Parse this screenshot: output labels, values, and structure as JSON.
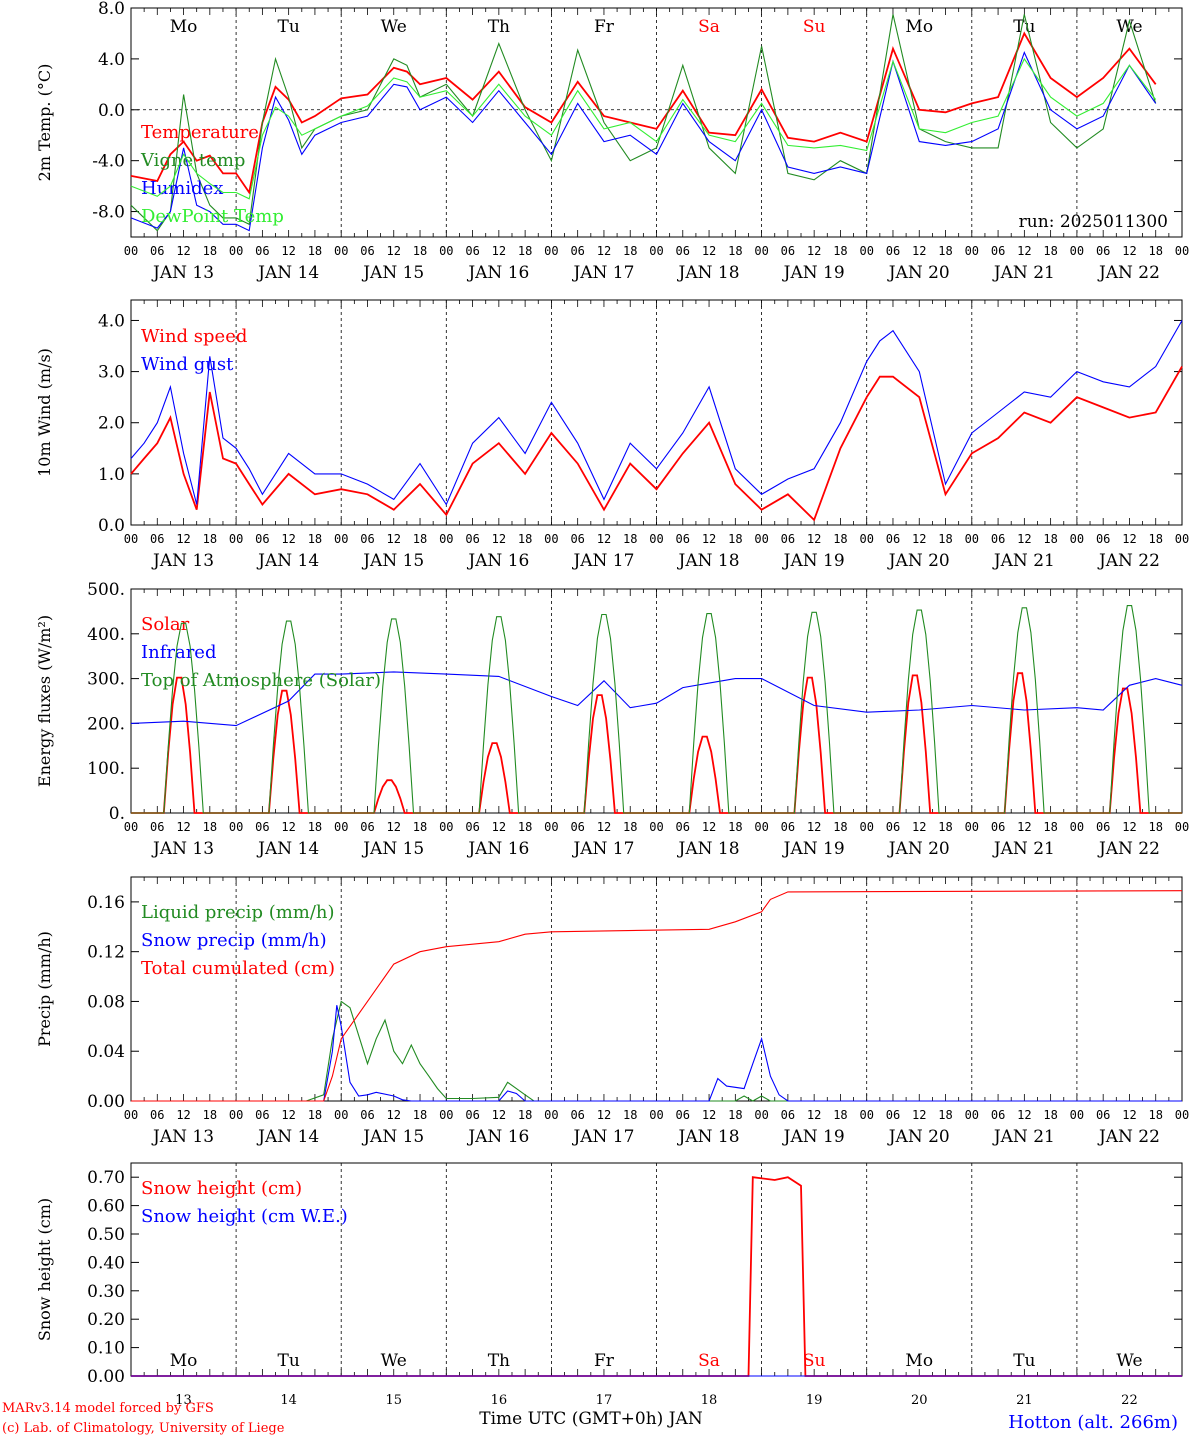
{
  "days": [
    "Mo",
    "Tu",
    "We",
    "Th",
    "Fr",
    "Sa",
    "Su",
    "Mo",
    "Tu",
    "We"
  ],
  "weekend_idx": [
    5,
    6
  ],
  "dates": [
    "JAN 13",
    "JAN 14",
    "JAN 15",
    "JAN 16",
    "JAN 17",
    "JAN 18",
    "JAN 19",
    "JAN 20",
    "JAN 21",
    "JAN 22"
  ],
  "day_numbers": [
    "13",
    "14",
    "15",
    "16",
    "17",
    "18",
    "19",
    "20",
    "21",
    "22"
  ],
  "hour_labels": [
    "00",
    "06",
    "12",
    "18"
  ],
  "hour_end": "00",
  "run_label": "run: 2025011300",
  "xaxis_title": "Time UTC (GMT+0h) JAN",
  "credit1": "MARv3.14 model forced by GFS",
  "credit2": "(c) Lab. of Climatology, University of Liege",
  "station": "Hotton (alt. 266m)",
  "colors": {
    "red": "#ff0000",
    "green": "#228b22",
    "blue": "#0000ff",
    "lightgreen": "#33ee33"
  },
  "chart_data": [
    {
      "type": "line",
      "ylabel": "2m Temp. (°C)",
      "ylim": [
        -10,
        8
      ],
      "yticks": [
        "8.0",
        "4.0",
        "0.0",
        "-4.0",
        "-8.0"
      ],
      "ytick_values": [
        8,
        4,
        0,
        -4,
        -8
      ],
      "zero_line": true,
      "x_hours": [
        0,
        6,
        9,
        12,
        15,
        18,
        21,
        24,
        27,
        30,
        33,
        36,
        39,
        42,
        48,
        54,
        60,
        63,
        66,
        72,
        78,
        84,
        90,
        96,
        102,
        108,
        114,
        120,
        126,
        132,
        138,
        144,
        150,
        156,
        162,
        168,
        174,
        180,
        186,
        192,
        198,
        204,
        210,
        216,
        222,
        228,
        234
      ],
      "series": [
        {
          "name": "Temperature",
          "color": "red",
          "values": [
            -5.2,
            -5.6,
            -3.5,
            -2.5,
            -4.0,
            -3.6,
            -5.0,
            -5.0,
            -6.5,
            -1.0,
            1.8,
            0.8,
            -1.0,
            -0.5,
            0.9,
            1.2,
            3.3,
            3.0,
            2.0,
            2.5,
            0.8,
            3.0,
            0.2,
            -1.0,
            2.2,
            -0.5,
            -1.0,
            -1.5,
            1.5,
            -1.8,
            -2.0,
            1.6,
            -2.2,
            -2.5,
            -1.8,
            -2.5,
            4.8,
            0.0,
            -0.2,
            0.5,
            1.0,
            6.0,
            2.5,
            1.0,
            2.5,
            4.8,
            2.0
          ]
        },
        {
          "name": "Vigne temp",
          "color": "green",
          "values": [
            -7.5,
            -9.5,
            -8.0,
            1.2,
            -5.0,
            -7.5,
            -8.5,
            -8.5,
            -9.0,
            -1.0,
            4.0,
            1.0,
            -3.0,
            -1.5,
            -0.5,
            0.0,
            4.0,
            3.5,
            1.0,
            2.0,
            -0.5,
            5.2,
            0.0,
            -4.0,
            4.7,
            -1.0,
            -4.0,
            -3.0,
            3.5,
            -3.0,
            -5.0,
            5.0,
            -5.0,
            -5.5,
            -4.0,
            -5.0,
            7.5,
            -1.5,
            -2.5,
            -3.0,
            -3.0,
            7.5,
            -1.0,
            -3.0,
            -1.5,
            7.0,
            0.5
          ]
        },
        {
          "name": "Humidex",
          "color": "blue",
          "values": [
            -8.5,
            -9.3,
            -8.0,
            -3.0,
            -7.5,
            -8.0,
            -9.0,
            -9.0,
            -9.5,
            -3.0,
            1.0,
            -0.8,
            -3.5,
            -2.0,
            -1.0,
            -0.5,
            2.0,
            1.8,
            0.0,
            1.0,
            -1.0,
            1.5,
            -1.0,
            -3.5,
            0.5,
            -2.5,
            -2.0,
            -3.5,
            0.5,
            -2.5,
            -4.0,
            0.0,
            -4.5,
            -5.0,
            -4.5,
            -5.0,
            3.8,
            -2.5,
            -2.8,
            -2.5,
            -1.5,
            4.5,
            0.0,
            -1.5,
            -0.5,
            3.5,
            0.5
          ]
        },
        {
          "name": "DewPoint Temp",
          "color": "lightgreen",
          "values": [
            -6.0,
            -6.8,
            -6.0,
            -3.5,
            -5.0,
            -5.8,
            -6.5,
            -6.5,
            -7.0,
            -2.0,
            0.2,
            -0.5,
            -2.0,
            -1.5,
            -0.5,
            0.3,
            2.5,
            2.2,
            1.0,
            1.5,
            -0.5,
            2.0,
            -0.5,
            -2.0,
            1.5,
            -1.5,
            -1.0,
            -2.5,
            0.8,
            -2.0,
            -2.5,
            0.5,
            -2.8,
            -3.0,
            -2.8,
            -3.2,
            3.8,
            -1.5,
            -1.8,
            -1.0,
            -0.5,
            4.0,
            1.0,
            -0.5,
            0.5,
            3.5,
            0.8
          ]
        }
      ]
    },
    {
      "type": "line",
      "ylabel": "10m Wind (m/s)",
      "ylim": [
        0,
        4.4
      ],
      "yticks": [
        "4.0",
        "3.0",
        "2.0",
        "1.0",
        "0.0"
      ],
      "ytick_values": [
        4,
        3,
        2,
        1,
        0
      ],
      "x_hours": [
        0,
        3,
        6,
        9,
        12,
        15,
        18,
        21,
        24,
        27,
        30,
        36,
        42,
        48,
        54,
        60,
        66,
        72,
        78,
        84,
        90,
        96,
        102,
        108,
        114,
        120,
        126,
        132,
        138,
        144,
        150,
        156,
        162,
        168,
        171,
        174,
        180,
        186,
        192,
        198,
        204,
        210,
        216,
        222,
        228,
        234,
        240
      ],
      "series": [
        {
          "name": "Wind speed",
          "color": "red",
          "values": [
            1.0,
            1.3,
            1.6,
            2.1,
            1.0,
            0.3,
            2.6,
            1.3,
            1.2,
            0.8,
            0.4,
            1.0,
            0.6,
            0.7,
            0.6,
            0.3,
            0.8,
            0.2,
            1.2,
            1.6,
            1.0,
            1.8,
            1.2,
            0.3,
            1.2,
            0.7,
            1.4,
            2.0,
            0.8,
            0.3,
            0.6,
            0.1,
            1.5,
            2.5,
            2.9,
            2.9,
            2.5,
            0.6,
            1.4,
            1.7,
            2.2,
            2.0,
            2.5,
            2.3,
            2.1,
            2.2,
            3.1
          ]
        },
        {
          "name": "Wind gust",
          "color": "blue",
          "values": [
            1.3,
            1.6,
            2.0,
            2.7,
            1.4,
            0.4,
            3.3,
            1.7,
            1.5,
            1.1,
            0.6,
            1.4,
            1.0,
            1.0,
            0.8,
            0.5,
            1.2,
            0.4,
            1.6,
            2.1,
            1.4,
            2.4,
            1.6,
            0.5,
            1.6,
            1.1,
            1.8,
            2.7,
            1.1,
            0.6,
            0.9,
            1.1,
            2.0,
            3.2,
            3.6,
            3.8,
            3.0,
            0.8,
            1.8,
            2.2,
            2.6,
            2.5,
            3.0,
            2.8,
            2.7,
            3.1,
            4.0
          ]
        }
      ]
    },
    {
      "type": "line",
      "ylabel": "Energy fluxes (W/m²)",
      "ylim": [
        0,
        500
      ],
      "yticks": [
        "500.",
        "400.",
        "300.",
        "200.",
        "100.",
        "0."
      ],
      "ytick_values": [
        500,
        400,
        300,
        200,
        100,
        0
      ],
      "daily_peaks": {
        "Top of Atmosphere (Solar)": [
          430,
          435,
          440,
          445,
          450,
          452,
          455,
          460,
          465,
          470
        ],
        "Solar": [
          310,
          280,
          75,
          160,
          270,
          175,
          310,
          315,
          320,
          285
        ]
      },
      "series": [
        {
          "name": "Solar",
          "color": "red"
        },
        {
          "name": "Infrared",
          "color": "blue",
          "x_hours": [
            0,
            12,
            24,
            36,
            42,
            48,
            60,
            72,
            84,
            96,
            102,
            108,
            114,
            120,
            126,
            132,
            138,
            144,
            156,
            168,
            180,
            192,
            204,
            216,
            222,
            228,
            234,
            240
          ],
          "values": [
            200,
            205,
            195,
            250,
            310,
            310,
            315,
            310,
            305,
            260,
            240,
            295,
            235,
            245,
            280,
            290,
            300,
            300,
            240,
            225,
            230,
            240,
            230,
            235,
            230,
            285,
            300,
            285
          ]
        },
        {
          "name": "Top of Atmosphere (Solar)",
          "color": "green"
        }
      ]
    },
    {
      "type": "line",
      "ylabel": "Precip (mm/h)",
      "ylim": [
        0,
        0.18
      ],
      "yticks": [
        "0.16",
        "0.12",
        "0.08",
        "0.04",
        "0.00"
      ],
      "ytick_values": [
        0.16,
        0.12,
        0.08,
        0.04,
        0
      ],
      "series": [
        {
          "name": "Liquid precip (mm/h)",
          "color": "green",
          "x_hours": [
            0,
            40,
            44,
            46,
            48,
            50,
            54,
            56,
            58,
            60,
            62,
            64,
            66,
            68,
            70,
            72,
            78,
            84,
            86,
            88,
            90,
            92,
            96,
            120,
            132,
            138,
            140,
            142,
            144,
            146,
            150,
            240
          ],
          "values": [
            0,
            0,
            0.005,
            0.05,
            0.08,
            0.075,
            0.03,
            0.05,
            0.065,
            0.04,
            0.03,
            0.045,
            0.03,
            0.02,
            0.01,
            0.002,
            0.002,
            0.003,
            0.015,
            0.01,
            0.005,
            0,
            0,
            0,
            0,
            0,
            0.004,
            0,
            0.004,
            0,
            0,
            0
          ]
        },
        {
          "name": "Snow precip (mm/h)",
          "color": "blue",
          "x_hours": [
            0,
            44,
            46,
            47,
            48,
            50,
            52,
            54,
            56,
            60,
            62,
            64,
            84,
            86,
            88,
            90,
            132,
            134,
            136,
            140,
            142,
            144,
            146,
            148,
            150,
            240
          ],
          "values": [
            0,
            0,
            0.04,
            0.077,
            0.06,
            0.015,
            0.004,
            0.005,
            0.007,
            0.004,
            0.001,
            0,
            0,
            0.008,
            0.006,
            0,
            0,
            0.018,
            0.012,
            0.01,
            0.03,
            0.05,
            0.02,
            0.005,
            0,
            0
          ]
        },
        {
          "name": "Total cumulated (cm)",
          "color": "red",
          "x_hours": [
            0,
            44,
            46,
            48,
            54,
            60,
            66,
            72,
            84,
            90,
            96,
            132,
            138,
            144,
            146,
            150,
            240
          ],
          "values": [
            0,
            0,
            0.02,
            0.05,
            0.08,
            0.11,
            0.12,
            0.124,
            0.128,
            0.134,
            0.136,
            0.138,
            0.144,
            0.152,
            0.162,
            0.168,
            0.169
          ]
        }
      ]
    },
    {
      "type": "line",
      "ylabel": "Snow height (cm)",
      "ylim": [
        0,
        0.75
      ],
      "yticks": [
        "0.70",
        "0.60",
        "0.50",
        "0.40",
        "0.30",
        "0.20",
        "0.10",
        "0.00"
      ],
      "ytick_values": [
        0.7,
        0.6,
        0.5,
        0.4,
        0.3,
        0.2,
        0.1,
        0
      ],
      "series": [
        {
          "name": "Snow height (cm)",
          "color": "red",
          "x_hours": [
            0,
            141,
            142,
            147,
            150,
            153,
            154,
            240
          ],
          "values": [
            0,
            0,
            0.7,
            0.69,
            0.7,
            0.67,
            0,
            0
          ]
        },
        {
          "name": "Snow height (cm W.E.)",
          "color": "blue",
          "x_hours": [
            0,
            240
          ],
          "values": [
            0,
            0
          ]
        }
      ]
    }
  ]
}
